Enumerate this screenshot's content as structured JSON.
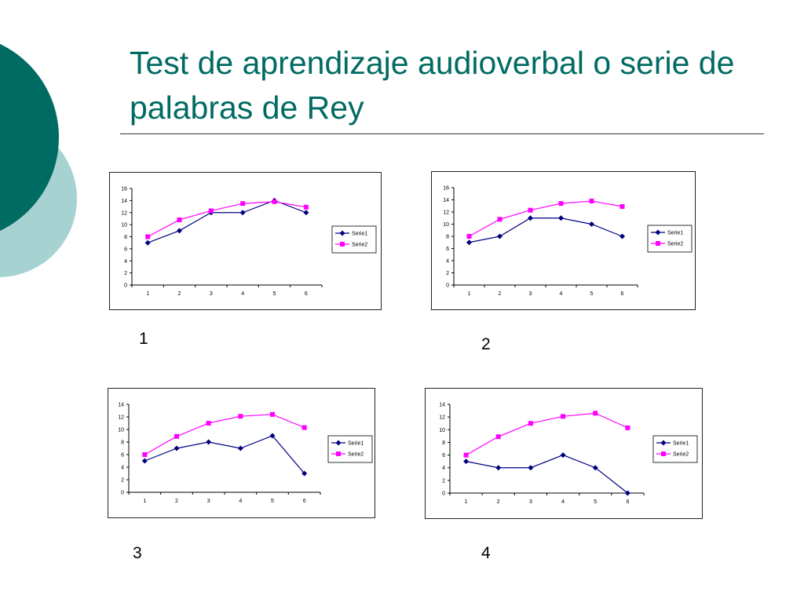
{
  "slide": {
    "title": "Test de aprendizaje audioverbal o serie de palabras de Rey",
    "colors": {
      "title": "#006b63",
      "circle_dark": "#006b63",
      "circle_light": "#a6d2d2",
      "serie1": "#000080",
      "serie2": "#ff00ff"
    }
  },
  "captions": [
    "1",
    "2",
    "3",
    "4"
  ],
  "chart_data": [
    {
      "type": "line",
      "x": [
        1,
        2,
        3,
        4,
        5,
        6
      ],
      "ylim": [
        0,
        16
      ],
      "yticks": [
        0,
        2,
        4,
        6,
        8,
        10,
        12,
        14,
        16
      ],
      "legend": "right",
      "grid": false,
      "series": [
        {
          "name": "Serie1",
          "marker": "diamond",
          "color": "#000080",
          "values": [
            7,
            9,
            12,
            12,
            14,
            12
          ]
        },
        {
          "name": "Serie2",
          "marker": "square",
          "color": "#ff00ff",
          "values": [
            8,
            10.8,
            12.3,
            13.5,
            13.8,
            12.9
          ]
        }
      ]
    },
    {
      "type": "line",
      "x": [
        1,
        2,
        3,
        4,
        5,
        6
      ],
      "ylim": [
        0,
        16
      ],
      "yticks": [
        0,
        2,
        4,
        6,
        8,
        10,
        12,
        14,
        16
      ],
      "legend": "right",
      "grid": false,
      "series": [
        {
          "name": "Serie1",
          "marker": "diamond",
          "color": "#000080",
          "values": [
            7,
            8,
            11,
            11,
            10,
            8
          ]
        },
        {
          "name": "Serie2",
          "marker": "square",
          "color": "#ff00ff",
          "values": [
            8,
            10.8,
            12.3,
            13.4,
            13.8,
            12.9
          ]
        }
      ]
    },
    {
      "type": "line",
      "x": [
        1,
        2,
        3,
        4,
        5,
        6
      ],
      "ylim": [
        0,
        14
      ],
      "yticks": [
        0,
        2,
        4,
        6,
        8,
        10,
        12,
        14
      ],
      "legend": "right",
      "grid": false,
      "series": [
        {
          "name": "Serie1",
          "marker": "diamond",
          "color": "#000080",
          "values": [
            5,
            7,
            8,
            7,
            9,
            3
          ]
        },
        {
          "name": "Serie2",
          "marker": "square",
          "color": "#ff00ff",
          "values": [
            6,
            8.9,
            11,
            12.1,
            12.4,
            10.3
          ]
        }
      ]
    },
    {
      "type": "line",
      "x": [
        1,
        2,
        3,
        4,
        5,
        6
      ],
      "ylim": [
        0,
        14
      ],
      "yticks": [
        0,
        2,
        4,
        6,
        8,
        10,
        12,
        14
      ],
      "legend": "right",
      "grid": false,
      "series": [
        {
          "name": "Serie1",
          "marker": "diamond",
          "color": "#000080",
          "values": [
            5,
            4,
            4,
            6,
            4,
            0
          ]
        },
        {
          "name": "Serie2",
          "marker": "square",
          "color": "#ff00ff",
          "values": [
            6,
            8.9,
            11,
            12.1,
            12.6,
            10.3
          ]
        }
      ]
    }
  ]
}
